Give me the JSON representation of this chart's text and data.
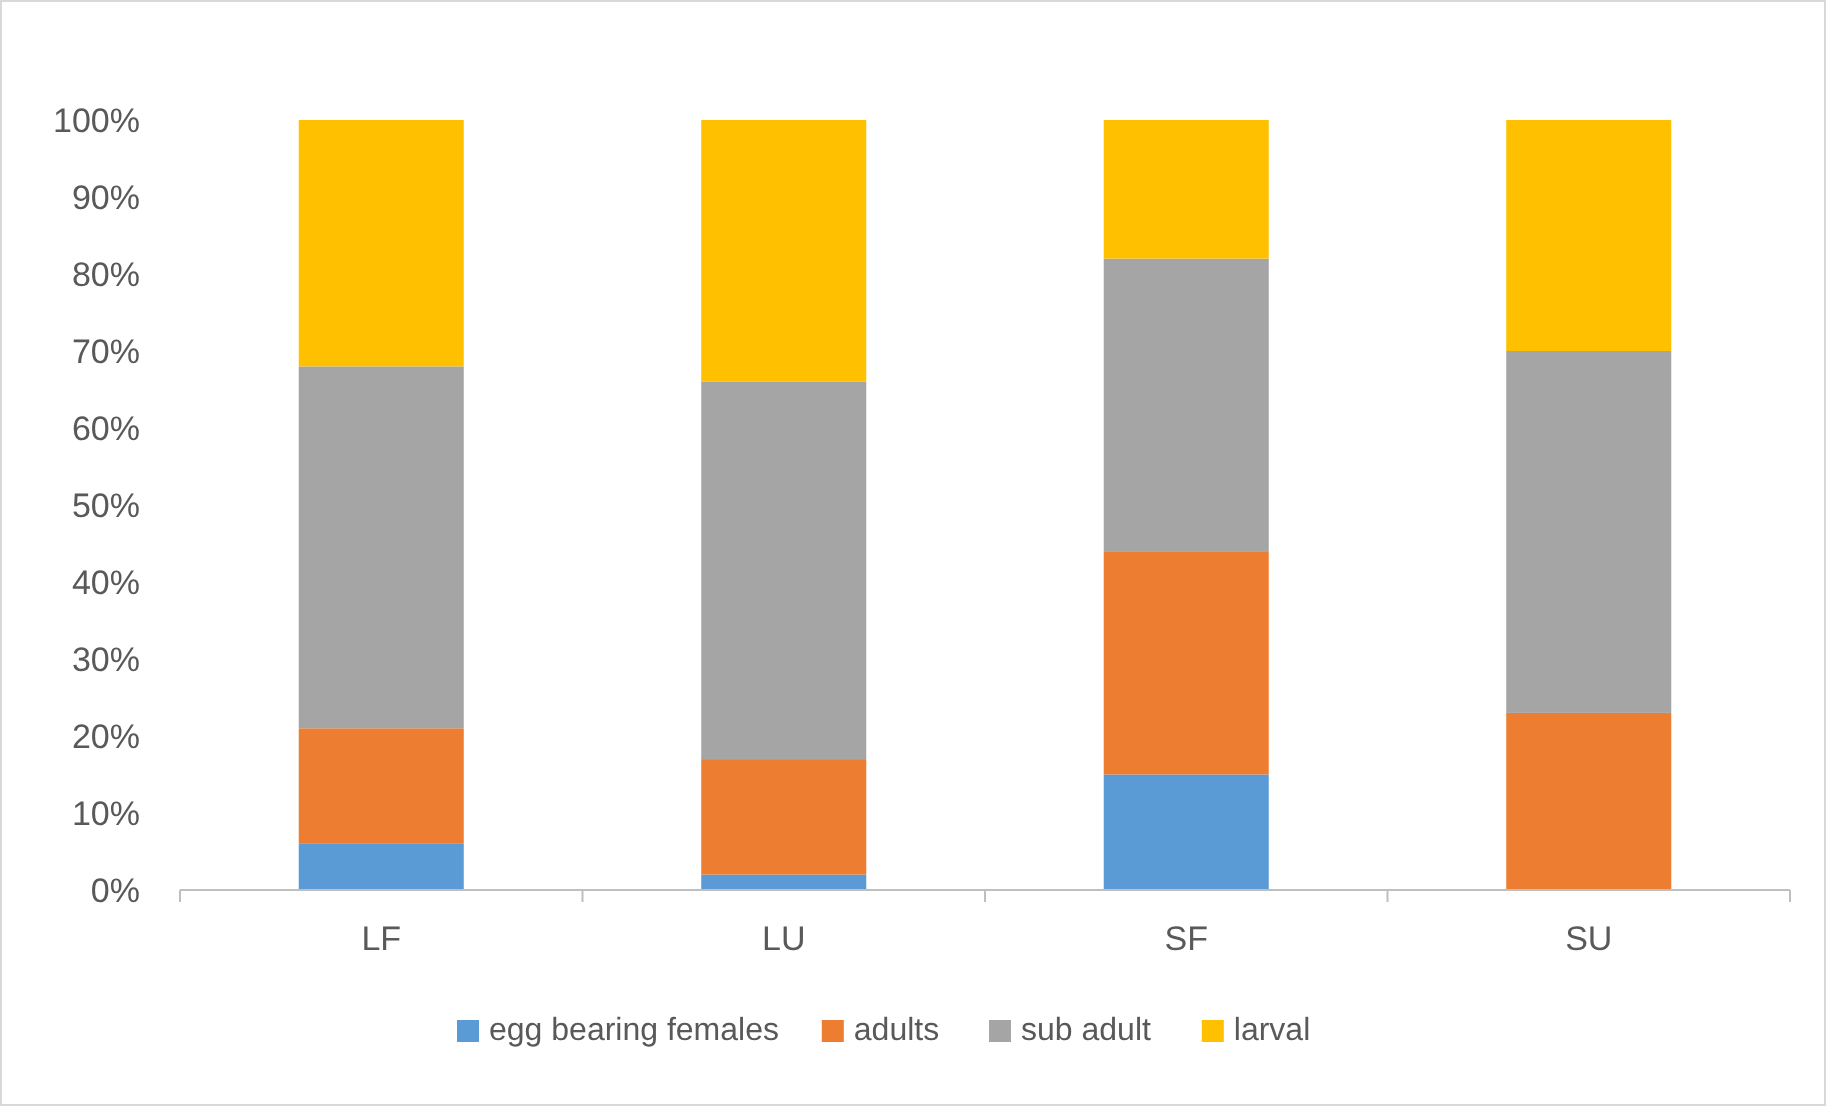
{
  "chart_data": {
    "type": "bar",
    "stacked": true,
    "categories": [
      "LF",
      "LU",
      "SF",
      "SU"
    ],
    "series": [
      {
        "name": "egg bearing females",
        "color": "#5b9bd5",
        "values": [
          6,
          2,
          15,
          0
        ]
      },
      {
        "name": "adults",
        "color": "#ed7d31",
        "values": [
          15,
          15,
          29,
          23
        ]
      },
      {
        "name": "sub adult",
        "color": "#a5a5a5",
        "values": [
          47,
          49,
          38,
          47
        ]
      },
      {
        "name": "larval",
        "color": "#ffc000",
        "values": [
          32,
          34,
          18,
          30
        ]
      }
    ],
    "ylim": [
      0,
      100
    ],
    "yticks": [
      {
        "value": 0,
        "label": "0%"
      },
      {
        "value": 10,
        "label": "10%"
      },
      {
        "value": 20,
        "label": "20%"
      },
      {
        "value": 30,
        "label": "30%"
      },
      {
        "value": 40,
        "label": "40%"
      },
      {
        "value": 50,
        "label": "50%"
      },
      {
        "value": 60,
        "label": "60%"
      },
      {
        "value": 70,
        "label": "70%"
      },
      {
        "value": 80,
        "label": "80%"
      },
      {
        "value": 90,
        "label": "90%"
      },
      {
        "value": 100,
        "label": "100%"
      }
    ],
    "legend": "bottom"
  }
}
